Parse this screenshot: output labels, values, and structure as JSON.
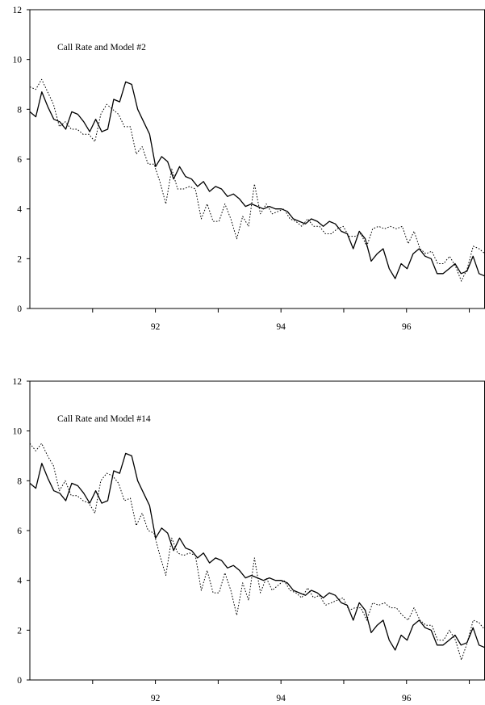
{
  "chart_data": [
    {
      "type": "line",
      "title": "Call Rate and Model #2",
      "xlabel": "",
      "ylabel": "",
      "ylim": [
        0,
        12
      ],
      "yticks": [
        0,
        2,
        4,
        6,
        8,
        10,
        12
      ],
      "yticklabels": [
        "0",
        "2",
        "4",
        "6",
        "8",
        "10",
        "12"
      ],
      "xtick_values": [
        91,
        92,
        93,
        94,
        95,
        96,
        97
      ],
      "xlabel_ticks": [
        {
          "x": 92,
          "label": "92"
        },
        {
          "x": 94,
          "label": "94"
        },
        {
          "x": 96,
          "label": "96"
        }
      ],
      "x_start": 90,
      "x_end": 97.25,
      "legend": "none",
      "grid": false,
      "series": [
        {
          "style": "solid",
          "values": [
            7.9,
            7.7,
            8.7,
            8.1,
            7.6,
            7.5,
            7.2,
            7.9,
            7.8,
            7.5,
            7.1,
            7.6,
            7.1,
            7.2,
            8.4,
            8.3,
            9.1,
            9.0,
            8.0,
            7.5,
            7.0,
            5.7,
            6.1,
            5.9,
            5.2,
            5.7,
            5.3,
            5.2,
            4.9,
            5.1,
            4.7,
            4.9,
            4.8,
            4.5,
            4.6,
            4.4,
            4.1,
            4.2,
            4.1,
            4.0,
            4.1,
            4.0,
            4.0,
            3.9,
            3.6,
            3.5,
            3.4,
            3.6,
            3.5,
            3.3,
            3.5,
            3.4,
            3.1,
            3.0,
            2.4,
            3.1,
            2.8,
            1.9,
            2.2,
            2.4,
            1.6,
            1.2,
            1.8,
            1.6,
            2.2,
            2.4,
            2.1,
            2.0,
            1.4,
            1.4,
            1.6,
            1.8,
            1.4,
            1.5,
            2.1,
            1.4,
            1.3
          ]
        },
        {
          "style": "dotted",
          "values": [
            8.9,
            8.8,
            9.2,
            8.7,
            8.2,
            7.3,
            7.5,
            7.2,
            7.2,
            7.0,
            7.0,
            6.7,
            7.8,
            8.2,
            8.0,
            7.8,
            7.3,
            7.3,
            6.2,
            6.5,
            5.8,
            5.8,
            5.1,
            4.2,
            5.6,
            4.8,
            4.8,
            4.9,
            4.8,
            3.6,
            4.2,
            3.5,
            3.5,
            4.2,
            3.6,
            2.8,
            3.7,
            3.3,
            5.0,
            3.8,
            4.2,
            3.8,
            3.9,
            4.0,
            3.6,
            3.5,
            3.3,
            3.6,
            3.3,
            3.3,
            3.0,
            3.0,
            3.2,
            3.3,
            2.9,
            2.9,
            3.0,
            2.5,
            3.2,
            3.3,
            3.2,
            3.3,
            3.2,
            3.3,
            2.6,
            3.1,
            2.4,
            2.2,
            2.3,
            1.8,
            1.8,
            2.1,
            1.7,
            1.1,
            1.6,
            2.5,
            2.4,
            2.2
          ]
        }
      ]
    },
    {
      "type": "line",
      "title": "Call Rate and Model #14",
      "xlabel": "",
      "ylabel": "",
      "ylim": [
        0,
        12
      ],
      "yticks": [
        0,
        2,
        4,
        6,
        8,
        10,
        12
      ],
      "yticklabels": [
        "0",
        "2",
        "4",
        "6",
        "8",
        "10",
        "12"
      ],
      "xtick_values": [
        91,
        92,
        93,
        94,
        95,
        96,
        97
      ],
      "xlabel_ticks": [
        {
          "x": 92,
          "label": "92"
        },
        {
          "x": 94,
          "label": "94"
        },
        {
          "x": 96,
          "label": "96"
        }
      ],
      "x_start": 90,
      "x_end": 97.25,
      "legend": "none",
      "grid": false,
      "series": [
        {
          "style": "solid",
          "values": [
            7.9,
            7.7,
            8.7,
            8.1,
            7.6,
            7.5,
            7.2,
            7.9,
            7.8,
            7.5,
            7.1,
            7.6,
            7.1,
            7.2,
            8.4,
            8.3,
            9.1,
            9.0,
            8.0,
            7.5,
            7.0,
            5.7,
            6.1,
            5.9,
            5.2,
            5.7,
            5.3,
            5.2,
            4.9,
            5.1,
            4.7,
            4.9,
            4.8,
            4.5,
            4.6,
            4.4,
            4.1,
            4.2,
            4.1,
            4.0,
            4.1,
            4.0,
            4.0,
            3.9,
            3.6,
            3.5,
            3.4,
            3.6,
            3.5,
            3.3,
            3.5,
            3.4,
            3.1,
            3.0,
            2.4,
            3.1,
            2.8,
            1.9,
            2.2,
            2.4,
            1.6,
            1.2,
            1.8,
            1.6,
            2.2,
            2.4,
            2.1,
            2.0,
            1.4,
            1.4,
            1.6,
            1.8,
            1.4,
            1.5,
            2.1,
            1.4,
            1.3
          ]
        },
        {
          "style": "dotted",
          "values": [
            9.5,
            9.2,
            9.5,
            9.0,
            8.6,
            7.6,
            8.0,
            7.4,
            7.4,
            7.2,
            7.1,
            6.7,
            8.0,
            8.3,
            8.2,
            7.9,
            7.2,
            7.3,
            6.2,
            6.7,
            6.0,
            5.9,
            5.0,
            4.2,
            5.7,
            5.1,
            5.0,
            5.1,
            5.0,
            3.6,
            4.4,
            3.5,
            3.5,
            4.3,
            3.6,
            2.6,
            3.9,
            3.2,
            4.9,
            3.5,
            4.1,
            3.6,
            3.8,
            4.0,
            3.6,
            3.5,
            3.3,
            3.7,
            3.3,
            3.4,
            3.0,
            3.1,
            3.2,
            3.3,
            2.8,
            2.9,
            2.9,
            2.4,
            3.1,
            3.0,
            3.1,
            2.9,
            2.9,
            2.6,
            2.4,
            2.9,
            2.4,
            2.2,
            2.2,
            1.6,
            1.6,
            2.0,
            1.6,
            0.8,
            1.5,
            2.4,
            2.3,
            2.0
          ]
        }
      ]
    }
  ]
}
